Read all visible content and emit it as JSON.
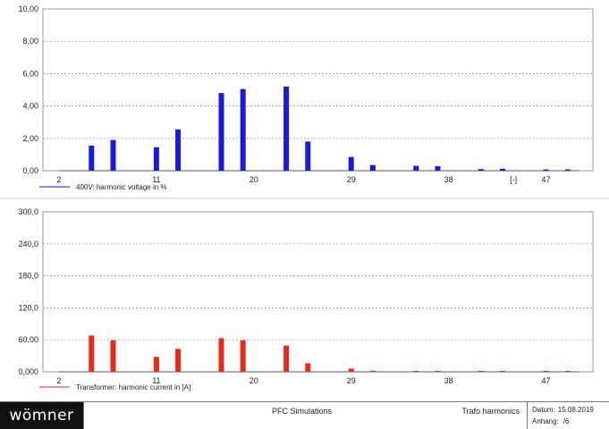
{
  "chart_data": [
    {
      "type": "bar",
      "ylim": [
        0,
        10
      ],
      "yticks": [
        "10,00",
        "8,00",
        "6,00",
        "4,00",
        "2,00",
        "0,00"
      ],
      "xticks": [
        "2",
        "11",
        "20",
        "29",
        "38",
        "[-]",
        "47"
      ],
      "legend": "400V: harmonic voltage in %",
      "color": "#1a1adf",
      "x": [
        5,
        7,
        11,
        13,
        17,
        19,
        23,
        25,
        29,
        31,
        35,
        37,
        41,
        43,
        47,
        49
      ],
      "values": [
        1.55,
        1.9,
        1.45,
        2.55,
        4.8,
        5.05,
        5.2,
        1.8,
        0.85,
        0.35,
        0.3,
        0.28,
        0.1,
        0.12,
        0.08,
        0.08
      ]
    },
    {
      "type": "bar",
      "ylim": [
        0,
        300
      ],
      "yticks": [
        "300,0",
        "240,0",
        "180,0",
        "120,0",
        "60,00",
        "0,000"
      ],
      "xticks": [
        "2",
        "11",
        "20",
        "29",
        "38",
        "47"
      ],
      "legend": "Transformer: harmonic current in [A]",
      "color": "#e8291c",
      "x": [
        5,
        7,
        11,
        13,
        17,
        19,
        23,
        25,
        29,
        31,
        35,
        37,
        41,
        43,
        47,
        49
      ],
      "values": [
        68,
        59,
        28,
        43,
        63,
        59,
        49,
        16,
        6,
        2,
        1.5,
        1.5,
        0.8,
        0.8,
        0.8,
        0.8
      ]
    }
  ],
  "footer": {
    "logo": "wömner",
    "title": "PFC Simulations",
    "subtitle": "Trafo harmonics",
    "date_label": "Datum:",
    "date": "15.08.2019",
    "page_label": "Anhang:",
    "page": "/6"
  }
}
